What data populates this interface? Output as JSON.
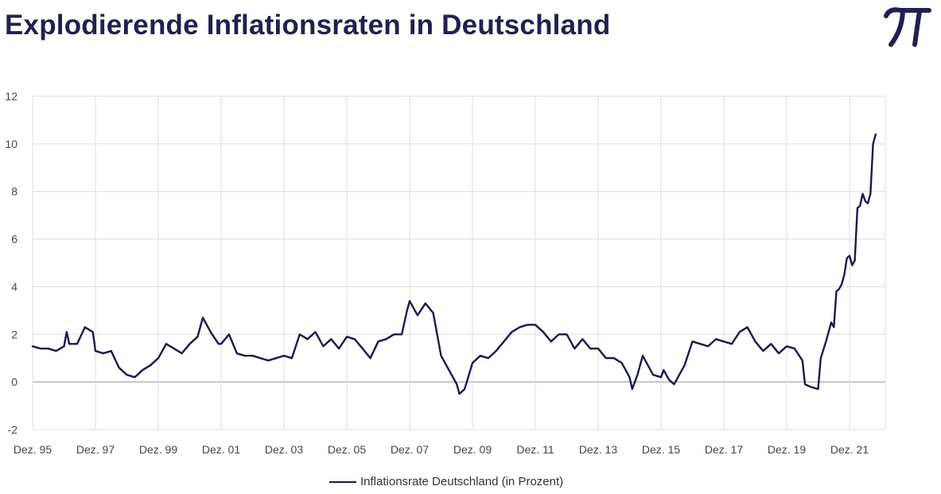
{
  "title": "Explodierende Inflationsraten in Deutschland",
  "logo": {
    "icon": "pi-icon",
    "color": "#21204f"
  },
  "colors": {
    "line": "#1a1a4a",
    "grid": "#dcdcdc",
    "zero_line": "#b5b5b5",
    "title": "#21204f"
  },
  "chart_data": {
    "type": "line",
    "title": "Explodierende Inflationsraten in Deutschland",
    "xlabel": "",
    "ylabel": "",
    "ylim": [
      -2,
      12
    ],
    "yticks": [
      -2,
      0,
      2,
      4,
      6,
      8,
      10,
      12
    ],
    "xlim": [
      "1995-12",
      "2022-10"
    ],
    "xtick_labels": [
      "Dez. 95",
      "Dez. 97",
      "Dez. 99",
      "Dez. 01",
      "Dez. 03",
      "Dez. 05",
      "Dez. 07",
      "Dez. 09",
      "Dez. 11",
      "Dez. 13",
      "Dez. 15",
      "Dez. 17",
      "Dez. 19",
      "Dez. 21"
    ],
    "grid": true,
    "legend_position": "bottom",
    "series": [
      {
        "name": "Inflationsrate Deutschland (in Prozent)",
        "points": [
          [
            "1995-12",
            1.5
          ],
          [
            "1996-03",
            1.4
          ],
          [
            "1996-06",
            1.4
          ],
          [
            "1996-09",
            1.3
          ],
          [
            "1996-12",
            1.5
          ],
          [
            "1997-01",
            2.1
          ],
          [
            "1997-02",
            1.6
          ],
          [
            "1997-05",
            1.6
          ],
          [
            "1997-08",
            2.3
          ],
          [
            "1997-11",
            2.1
          ],
          [
            "1997-12",
            1.3
          ],
          [
            "1998-03",
            1.2
          ],
          [
            "1998-06",
            1.3
          ],
          [
            "1998-09",
            0.6
          ],
          [
            "1998-12",
            0.3
          ],
          [
            "1999-03",
            0.2
          ],
          [
            "1999-06",
            0.5
          ],
          [
            "1999-09",
            0.7
          ],
          [
            "1999-12",
            1.0
          ],
          [
            "2000-03",
            1.6
          ],
          [
            "2000-06",
            1.4
          ],
          [
            "2000-09",
            1.2
          ],
          [
            "2000-12",
            1.6
          ],
          [
            "2001-03",
            1.9
          ],
          [
            "2001-05",
            2.7
          ],
          [
            "2001-08",
            2.1
          ],
          [
            "2001-11",
            1.6
          ],
          [
            "2001-12",
            1.6
          ],
          [
            "2002-03",
            2.0
          ],
          [
            "2002-06",
            1.2
          ],
          [
            "2002-09",
            1.1
          ],
          [
            "2002-12",
            1.1
          ],
          [
            "2003-03",
            1.0
          ],
          [
            "2003-06",
            0.9
          ],
          [
            "2003-09",
            1.0
          ],
          [
            "2003-12",
            1.1
          ],
          [
            "2004-03",
            1.0
          ],
          [
            "2004-06",
            2.0
          ],
          [
            "2004-09",
            1.8
          ],
          [
            "2004-12",
            2.1
          ],
          [
            "2005-03",
            1.5
          ],
          [
            "2005-06",
            1.8
          ],
          [
            "2005-09",
            1.4
          ],
          [
            "2005-12",
            1.9
          ],
          [
            "2006-03",
            1.8
          ],
          [
            "2006-06",
            1.4
          ],
          [
            "2006-09",
            1.0
          ],
          [
            "2006-12",
            1.7
          ],
          [
            "2007-03",
            1.8
          ],
          [
            "2007-06",
            2.0
          ],
          [
            "2007-09",
            2.0
          ],
          [
            "2007-11",
            3.0
          ],
          [
            "2007-12",
            3.4
          ],
          [
            "2008-03",
            2.8
          ],
          [
            "2008-06",
            3.3
          ],
          [
            "2008-09",
            2.9
          ],
          [
            "2008-12",
            1.1
          ],
          [
            "2009-03",
            0.5
          ],
          [
            "2009-06",
            -0.1
          ],
          [
            "2009-07",
            -0.5
          ],
          [
            "2009-09",
            -0.3
          ],
          [
            "2009-12",
            0.8
          ],
          [
            "2010-03",
            1.1
          ],
          [
            "2010-06",
            1.0
          ],
          [
            "2010-09",
            1.3
          ],
          [
            "2010-12",
            1.7
          ],
          [
            "2011-03",
            2.1
          ],
          [
            "2011-06",
            2.3
          ],
          [
            "2011-09",
            2.4
          ],
          [
            "2011-12",
            2.4
          ],
          [
            "2012-03",
            2.1
          ],
          [
            "2012-06",
            1.7
          ],
          [
            "2012-09",
            2.0
          ],
          [
            "2012-12",
            2.0
          ],
          [
            "2013-03",
            1.4
          ],
          [
            "2013-06",
            1.8
          ],
          [
            "2013-09",
            1.4
          ],
          [
            "2013-12",
            1.4
          ],
          [
            "2014-03",
            1.0
          ],
          [
            "2014-06",
            1.0
          ],
          [
            "2014-09",
            0.8
          ],
          [
            "2014-12",
            0.2
          ],
          [
            "2015-01",
            -0.3
          ],
          [
            "2015-03",
            0.3
          ],
          [
            "2015-05",
            1.1
          ],
          [
            "2015-09",
            0.3
          ],
          [
            "2015-12",
            0.2
          ],
          [
            "2016-01",
            0.5
          ],
          [
            "2016-03",
            0.1
          ],
          [
            "2016-05",
            -0.1
          ],
          [
            "2016-09",
            0.7
          ],
          [
            "2016-12",
            1.7
          ],
          [
            "2017-03",
            1.6
          ],
          [
            "2017-06",
            1.5
          ],
          [
            "2017-09",
            1.8
          ],
          [
            "2017-12",
            1.7
          ],
          [
            "2018-03",
            1.6
          ],
          [
            "2018-06",
            2.1
          ],
          [
            "2018-09",
            2.3
          ],
          [
            "2018-12",
            1.7
          ],
          [
            "2019-03",
            1.3
          ],
          [
            "2019-06",
            1.6
          ],
          [
            "2019-09",
            1.2
          ],
          [
            "2019-12",
            1.5
          ],
          [
            "2020-03",
            1.4
          ],
          [
            "2020-06",
            0.9
          ],
          [
            "2020-07",
            -0.1
          ],
          [
            "2020-09",
            -0.2
          ],
          [
            "2020-12",
            -0.3
          ],
          [
            "2021-01",
            1.0
          ],
          [
            "2021-03",
            1.7
          ],
          [
            "2021-05",
            2.5
          ],
          [
            "2021-06",
            2.3
          ],
          [
            "2021-07",
            3.8
          ],
          [
            "2021-08",
            3.9
          ],
          [
            "2021-09",
            4.1
          ],
          [
            "2021-10",
            4.5
          ],
          [
            "2021-11",
            5.2
          ],
          [
            "2021-12",
            5.3
          ],
          [
            "2022-01",
            4.9
          ],
          [
            "2022-02",
            5.1
          ],
          [
            "2022-03",
            7.3
          ],
          [
            "2022-04",
            7.4
          ],
          [
            "2022-05",
            7.9
          ],
          [
            "2022-06",
            7.6
          ],
          [
            "2022-07",
            7.5
          ],
          [
            "2022-08",
            7.9
          ],
          [
            "2022-09",
            10.0
          ],
          [
            "2022-10",
            10.4
          ]
        ]
      }
    ]
  }
}
